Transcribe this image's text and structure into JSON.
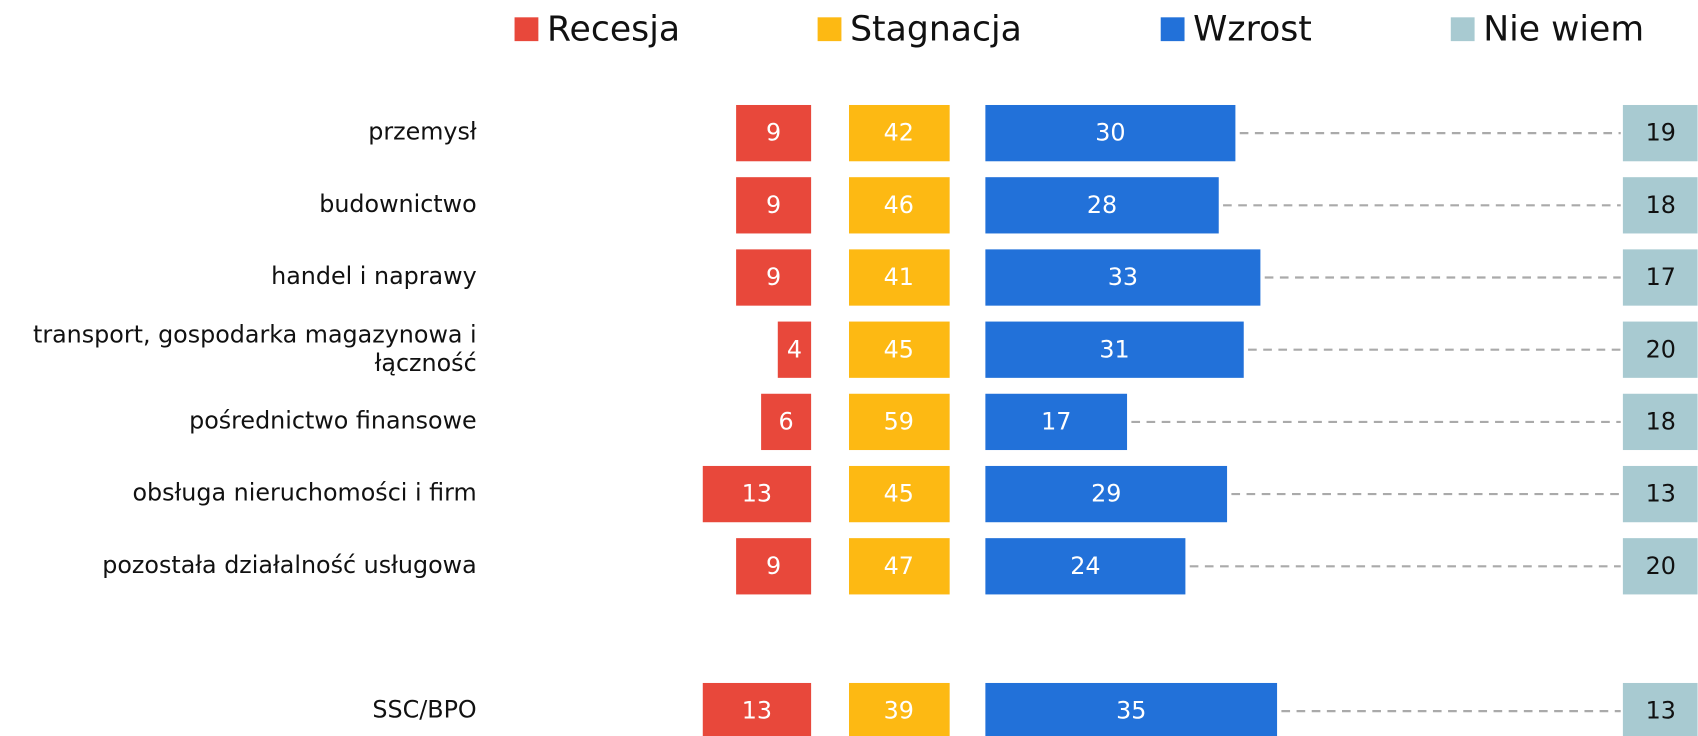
{
  "chart_data": {
    "type": "bar",
    "categories": [
      "przemysł",
      "budownictwo",
      "handel i naprawy",
      "transport, gospodarka magazynowa i łączność",
      "pośrednictwo finansowe",
      "obsługa nieruchomości i firm",
      "pozostała działalność usługowa",
      "SSC/BPO"
    ],
    "series": [
      {
        "name": "Recesja",
        "color": "#e8483b",
        "values": [
          9,
          9,
          9,
          4,
          6,
          13,
          9,
          13
        ]
      },
      {
        "name": "Stagnacja",
        "color": "#fdb913",
        "values": [
          42,
          46,
          41,
          45,
          59,
          45,
          47,
          39
        ]
      },
      {
        "name": "Wzrost",
        "color": "#2271d9",
        "values": [
          30,
          28,
          33,
          31,
          17,
          29,
          24,
          35
        ]
      },
      {
        "name": "Nie wiem",
        "color": "#a8cad1",
        "values": [
          19,
          18,
          17,
          20,
          18,
          13,
          20,
          13
        ]
      }
    ]
  }
}
